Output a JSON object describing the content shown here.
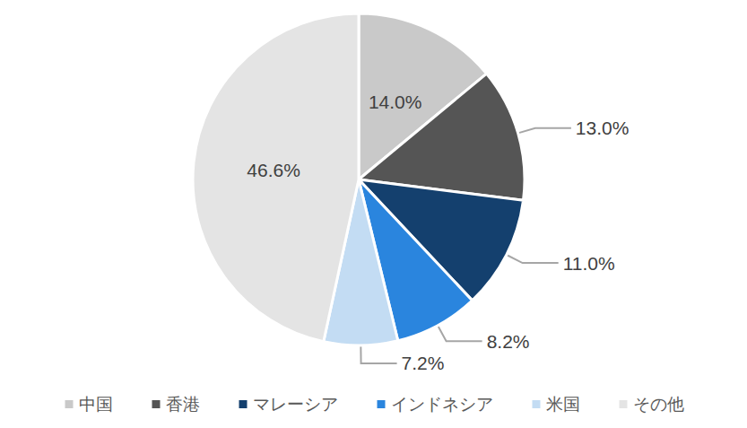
{
  "chart_data": {
    "type": "pie",
    "categories": [
      "中国",
      "香港",
      "マレーシア",
      "インドネシア",
      "米国",
      "その他"
    ],
    "values": [
      14.0,
      13.0,
      11.0,
      8.2,
      7.2,
      46.6
    ],
    "value_labels": [
      "14.0%",
      "13.0%",
      "11.0%",
      "8.2%",
      "7.2%",
      "46.6%"
    ],
    "colors": [
      "#c9c9c9",
      "#555555",
      "#14406e",
      "#2a85de",
      "#c3dcf3",
      "#e4e4e4"
    ],
    "data_labels": true,
    "legend": "bottom"
  }
}
